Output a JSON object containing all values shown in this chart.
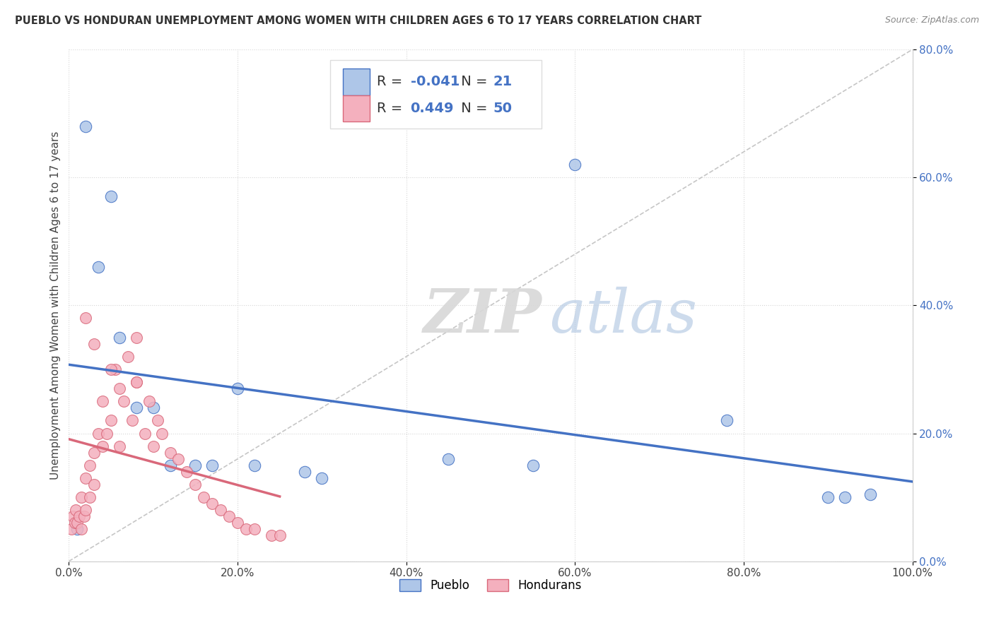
{
  "title": "PUEBLO VS HONDURAN UNEMPLOYMENT AMONG WOMEN WITH CHILDREN AGES 6 TO 17 YEARS CORRELATION CHART",
  "source": "Source: ZipAtlas.com",
  "ylabel": "Unemployment Among Women with Children Ages 6 to 17 years",
  "xlim": [
    0,
    100
  ],
  "ylim": [
    0,
    80
  ],
  "xticks": [
    0,
    20,
    40,
    60,
    80,
    100
  ],
  "xticklabels": [
    "0.0%",
    "20.0%",
    "40.0%",
    "60.0%",
    "80.0%",
    "100.0%"
  ],
  "yticks": [
    0,
    20,
    40,
    60,
    80
  ],
  "yticklabels": [
    "0.0%",
    "20.0%",
    "40.0%",
    "60.0%",
    "80.0%"
  ],
  "pueblo_color": "#aec6e8",
  "honduran_color": "#f4b0be",
  "pueblo_edge": "#4472c4",
  "honduran_edge": "#d9687a",
  "pueblo_line_color": "#4472c4",
  "honduran_line_color": "#d9687a",
  "R_pueblo": -0.041,
  "N_pueblo": 21,
  "R_honduran": 0.449,
  "N_honduran": 50,
  "legend_labels": [
    "Pueblo",
    "Hondurans"
  ],
  "watermark_zip": "ZIP",
  "watermark_atlas": "atlas",
  "background_color": "#ffffff",
  "grid_color": "#cccccc",
  "tick_color": "#4472c4",
  "pueblo_x": [
    1.0,
    2.0,
    3.5,
    5.0,
    6.0,
    8.0,
    10.0,
    12.0,
    15.0,
    17.0,
    20.0,
    22.0,
    28.0,
    30.0,
    45.0,
    55.0,
    60.0,
    78.0,
    90.0,
    92.0,
    95.0
  ],
  "pueblo_y": [
    5.0,
    68.0,
    46.0,
    57.0,
    35.0,
    24.0,
    24.0,
    15.0,
    15.0,
    15.0,
    27.0,
    15.0,
    14.0,
    13.0,
    16.0,
    15.0,
    62.0,
    22.0,
    10.0,
    10.0,
    10.5
  ],
  "honduran_x": [
    0.3,
    0.5,
    0.7,
    0.8,
    1.0,
    1.2,
    1.5,
    1.5,
    1.8,
    2.0,
    2.0,
    2.5,
    2.5,
    3.0,
    3.0,
    3.5,
    4.0,
    4.0,
    4.5,
    5.0,
    5.5,
    6.0,
    6.0,
    6.5,
    7.0,
    7.5,
    8.0,
    8.0,
    9.0,
    9.5,
    10.0,
    10.5,
    11.0,
    12.0,
    13.0,
    14.0,
    15.0,
    16.0,
    17.0,
    18.0,
    19.0,
    20.0,
    21.0,
    22.0,
    24.0,
    25.0,
    2.0,
    3.0,
    5.0,
    8.0
  ],
  "honduran_y": [
    5.0,
    7.0,
    6.0,
    8.0,
    6.0,
    7.0,
    5.0,
    10.0,
    7.0,
    8.0,
    13.0,
    10.0,
    15.0,
    12.0,
    17.0,
    20.0,
    18.0,
    25.0,
    20.0,
    22.0,
    30.0,
    18.0,
    27.0,
    25.0,
    32.0,
    22.0,
    28.0,
    35.0,
    20.0,
    25.0,
    18.0,
    22.0,
    20.0,
    17.0,
    16.0,
    14.0,
    12.0,
    10.0,
    9.0,
    8.0,
    7.0,
    6.0,
    5.0,
    5.0,
    4.0,
    4.0,
    38.0,
    34.0,
    30.0,
    28.0
  ]
}
